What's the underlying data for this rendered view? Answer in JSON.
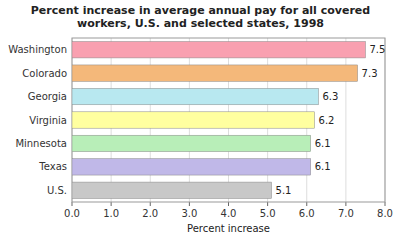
{
  "chart_data": {
    "type": "bar",
    "orientation": "horizontal",
    "title": "Percent increase in average annual pay for all covered\nworkers, U.S. and selected states, 1998",
    "categories": [
      "Washington",
      "Colorado",
      "Georgia",
      "Virginia",
      "Minnesota",
      "Texas",
      "U.S."
    ],
    "values": [
      7.5,
      7.3,
      6.3,
      6.2,
      6.1,
      6.1,
      5.1
    ],
    "colors": [
      "#F9A0B0",
      "#F4B87A",
      "#B8E8F0",
      "#FFFFA0",
      "#B8EEB8",
      "#C0B8E8",
      "#C8C8C8"
    ],
    "xlabel": "Percent increase",
    "xlim": [
      0,
      8.0
    ],
    "xticks": [
      {
        "value": 0.0,
        "label": "0.0"
      },
      {
        "value": 1.0,
        "label": "1.0"
      },
      {
        "value": 2.0,
        "label": "2.0"
      },
      {
        "value": 3.0,
        "label": "3.0"
      },
      {
        "value": 4.0,
        "label": "4.0"
      },
      {
        "value": 5.0,
        "label": "5.0"
      },
      {
        "value": 6.0,
        "label": "6.0"
      },
      {
        "value": 7.0,
        "label": "7.0"
      },
      {
        "value": 8.0,
        "label": "8.0"
      }
    ],
    "grid": true,
    "data_labels": true
  }
}
